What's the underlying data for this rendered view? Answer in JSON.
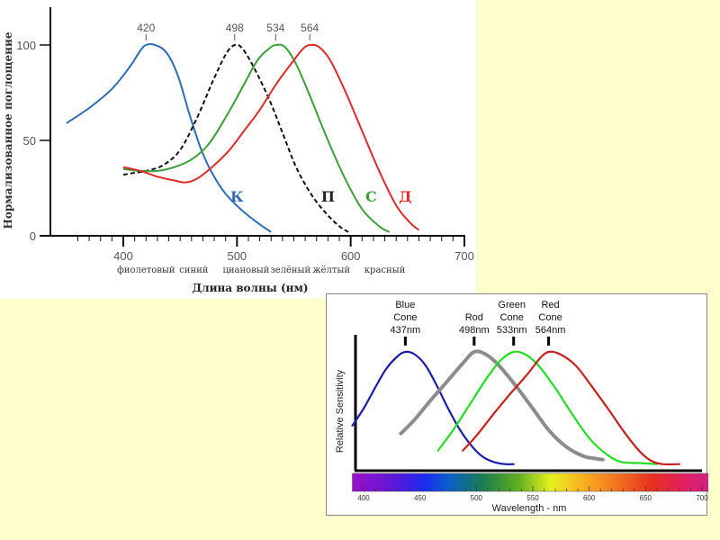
{
  "page": {
    "background_color": "#FFFFCC"
  },
  "chart_data": [
    {
      "type": "line",
      "title": "",
      "xlabel": "Длина волны (нм)",
      "ylabel": "Нормализованное поглощение",
      "xlim": [
        345,
        700
      ],
      "ylim": [
        0,
        100
      ],
      "x_ticks": [
        400,
        500,
        600,
        700
      ],
      "y_ticks": [
        0,
        50,
        100
      ],
      "grid": false,
      "color_band_labels": [
        {
          "label": "фиолетовый",
          "x": 420
        },
        {
          "label": "синий",
          "x": 462
        },
        {
          "label": "циановый",
          "x": 508
        },
        {
          "label": "зелёный",
          "x": 547
        },
        {
          "label": "жёлтый",
          "x": 583
        },
        {
          "label": "красный",
          "x": 630
        }
      ],
      "peak_labels": [
        {
          "label": "420",
          "x": 420
        },
        {
          "label": "498",
          "x": 498
        },
        {
          "label": "534",
          "x": 534
        },
        {
          "label": "564",
          "x": 564
        }
      ],
      "series": [
        {
          "name": "К",
          "color": "#2E6DB4",
          "dash": false,
          "label_at": [
            500,
            18
          ],
          "points": [
            [
              350,
              59
            ],
            [
              370,
              67
            ],
            [
              390,
              77
            ],
            [
              405,
              88
            ],
            [
              415,
              97
            ],
            [
              420,
              100
            ],
            [
              428,
              100
            ],
            [
              438,
              96
            ],
            [
              448,
              84
            ],
            [
              458,
              64
            ],
            [
              468,
              46
            ],
            [
              478,
              33
            ],
            [
              490,
              22
            ],
            [
              505,
              13
            ],
            [
              520,
              6
            ],
            [
              530,
              2
            ]
          ]
        },
        {
          "name": "П",
          "color": "#111111",
          "dash": true,
          "label_at": [
            580,
            18
          ],
          "points": [
            [
              400,
              32
            ],
            [
              410,
              33
            ],
            [
              420,
              34
            ],
            [
              435,
              37
            ],
            [
              450,
              45
            ],
            [
              465,
              62
            ],
            [
              478,
              80
            ],
            [
              490,
              95
            ],
            [
              498,
              100
            ],
            [
              505,
              98
            ],
            [
              515,
              88
            ],
            [
              528,
              72
            ],
            [
              540,
              54
            ],
            [
              552,
              36
            ],
            [
              565,
              22
            ],
            [
              578,
              12
            ],
            [
              590,
              5
            ],
            [
              598,
              2
            ]
          ]
        },
        {
          "name": "С",
          "color": "#3A9E3A",
          "dash": false,
          "label_at": [
            618,
            18
          ],
          "points": [
            [
              400,
              35
            ],
            [
              415,
              34
            ],
            [
              430,
              34
            ],
            [
              445,
              36
            ],
            [
              460,
              40
            ],
            [
              475,
              48
            ],
            [
              490,
              62
            ],
            [
              505,
              78
            ],
            [
              518,
              92
            ],
            [
              528,
              98
            ],
            [
              534,
              100
            ],
            [
              542,
              99
            ],
            [
              552,
              90
            ],
            [
              565,
              72
            ],
            [
              580,
              50
            ],
            [
              595,
              30
            ],
            [
              610,
              14
            ],
            [
              625,
              5
            ],
            [
              634,
              2
            ]
          ]
        },
        {
          "name": "Д",
          "color": "#E02A2A",
          "dash": false,
          "label_at": [
            648,
            18
          ],
          "points": [
            [
              400,
              36
            ],
            [
              415,
              34
            ],
            [
              430,
              31
            ],
            [
              445,
              29
            ],
            [
              455,
              28
            ],
            [
              465,
              30
            ],
            [
              478,
              36
            ],
            [
              492,
              44
            ],
            [
              505,
              54
            ],
            [
              520,
              66
            ],
            [
              535,
              80
            ],
            [
              550,
              92
            ],
            [
              558,
              98
            ],
            [
              564,
              100
            ],
            [
              572,
              99
            ],
            [
              582,
              92
            ],
            [
              595,
              76
            ],
            [
              610,
              55
            ],
            [
              625,
              34
            ],
            [
              640,
              16
            ],
            [
              652,
              7
            ],
            [
              660,
              3
            ]
          ]
        }
      ]
    },
    {
      "type": "line",
      "title": "",
      "xlabel": "Wavelength - nm",
      "ylabel": "Relative Sensitivity",
      "xlim": [
        390,
        710
      ],
      "ylim": [
        0,
        100
      ],
      "x_ticks": [
        400,
        450,
        500,
        550,
        600,
        650,
        700
      ],
      "grid": false,
      "spectrum_bar": true,
      "series": [
        {
          "name": "Blue Cone",
          "peak_label_lines": [
            "Blue",
            "Cone",
            "437nm"
          ],
          "peak": 437,
          "color": "#1C1CAA",
          "points": [
            [
              390,
              35
            ],
            [
              400,
              50
            ],
            [
              410,
              68
            ],
            [
              420,
              85
            ],
            [
              430,
              96
            ],
            [
              437,
              100
            ],
            [
              445,
              98
            ],
            [
              455,
              88
            ],
            [
              465,
              70
            ],
            [
              475,
              50
            ],
            [
              485,
              32
            ],
            [
              495,
              18
            ],
            [
              505,
              8
            ],
            [
              515,
              3
            ],
            [
              525,
              1
            ],
            [
              533,
              1
            ]
          ]
        },
        {
          "name": "Rod",
          "peak_label_lines": [
            "Rod",
            "498nm"
          ],
          "peak": 498,
          "color": "#8C8C8C",
          "points": [
            [
              433,
              28
            ],
            [
              445,
              40
            ],
            [
              460,
              58
            ],
            [
              475,
              75
            ],
            [
              488,
              90
            ],
            [
              498,
              100
            ],
            [
              508,
              98
            ],
            [
              520,
              88
            ],
            [
              535,
              70
            ],
            [
              550,
              50
            ],
            [
              565,
              30
            ],
            [
              580,
              16
            ],
            [
              595,
              8
            ],
            [
              605,
              6
            ],
            [
              612,
              5
            ]
          ]
        },
        {
          "name": "Green Cone",
          "peak_label_lines": [
            "Green",
            "Cone",
            "533nm"
          ],
          "peak": 533,
          "color": "#22DD22",
          "points": [
            [
              466,
              13
            ],
            [
              480,
              32
            ],
            [
              495,
              55
            ],
            [
              510,
              78
            ],
            [
              522,
              93
            ],
            [
              533,
              100
            ],
            [
              543,
              98
            ],
            [
              555,
              88
            ],
            [
              570,
              68
            ],
            [
              585,
              45
            ],
            [
              600,
              24
            ],
            [
              615,
              10
            ],
            [
              628,
              3
            ],
            [
              645,
              2
            ],
            [
              660,
              1
            ]
          ]
        },
        {
          "name": "Red Cone",
          "peak_label_lines": [
            "Red",
            "Cone",
            "564nm"
          ],
          "peak": 564,
          "color": "#C81E1E",
          "points": [
            [
              488,
              13
            ],
            [
              500,
              26
            ],
            [
              515,
              45
            ],
            [
              530,
              63
            ],
            [
              545,
              80
            ],
            [
              556,
              94
            ],
            [
              564,
              100
            ],
            [
              574,
              98
            ],
            [
              588,
              88
            ],
            [
              602,
              70
            ],
            [
              618,
              48
            ],
            [
              632,
              28
            ],
            [
              645,
              12
            ],
            [
              655,
              4
            ],
            [
              665,
              1
            ],
            [
              680,
              1
            ]
          ]
        }
      ]
    }
  ]
}
